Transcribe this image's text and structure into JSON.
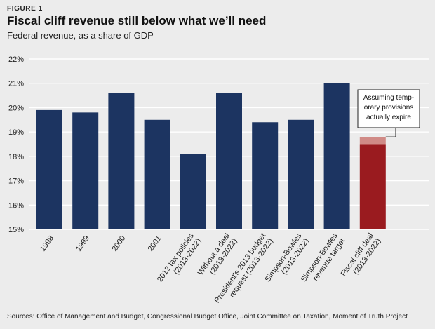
{
  "header": {
    "figure_label": "FIGURE 1",
    "title": "Fiscal cliff revenue still below what we’ll need",
    "subtitle": "Federal revenue, as a share of GDP"
  },
  "source": "Sources: Office of Management and Budget, Congressional Budget Office, Joint Committee on Taxation, Moment of Truth Project",
  "colors": {
    "bar": "#1c3461",
    "highlight": "#9a1b1f",
    "highlight_top": "#d08a86",
    "grid": "#ffffff"
  },
  "chart_data": {
    "type": "bar",
    "title": "Fiscal cliff revenue still below what we’ll need",
    "ylabel": "Federal revenue, as a share of GDP",
    "ylim": [
      15,
      22
    ],
    "yticks": [
      "15%",
      "16%",
      "17%",
      "18%",
      "19%",
      "20%",
      "21%",
      "22%"
    ],
    "grid": true,
    "categories": [
      [
        "1998"
      ],
      [
        "1999"
      ],
      [
        "2000"
      ],
      [
        "2001"
      ],
      [
        "2012 tax policies",
        "(2013-2022)"
      ],
      [
        "Without a deal",
        "(2013-2022)"
      ],
      [
        "President’s 2013 budget",
        "request (2013-2022)"
      ],
      [
        "Simpson-Bowles",
        "(2013-2022)"
      ],
      [
        "Simpson-Bowles",
        "revenue target"
      ],
      [
        "Fiscal cliff deal",
        "(2013-2022)"
      ]
    ],
    "values": [
      19.9,
      19.8,
      20.6,
      19.5,
      18.1,
      20.6,
      19.4,
      19.5,
      21.0,
      18.5
    ],
    "highlight_index": 9,
    "highlight_extra": 0.3,
    "annotation": {
      "lines": [
        "Assuming temp-",
        "orary provisions",
        "actually expire"
      ],
      "points_to_value": 18.8
    }
  }
}
